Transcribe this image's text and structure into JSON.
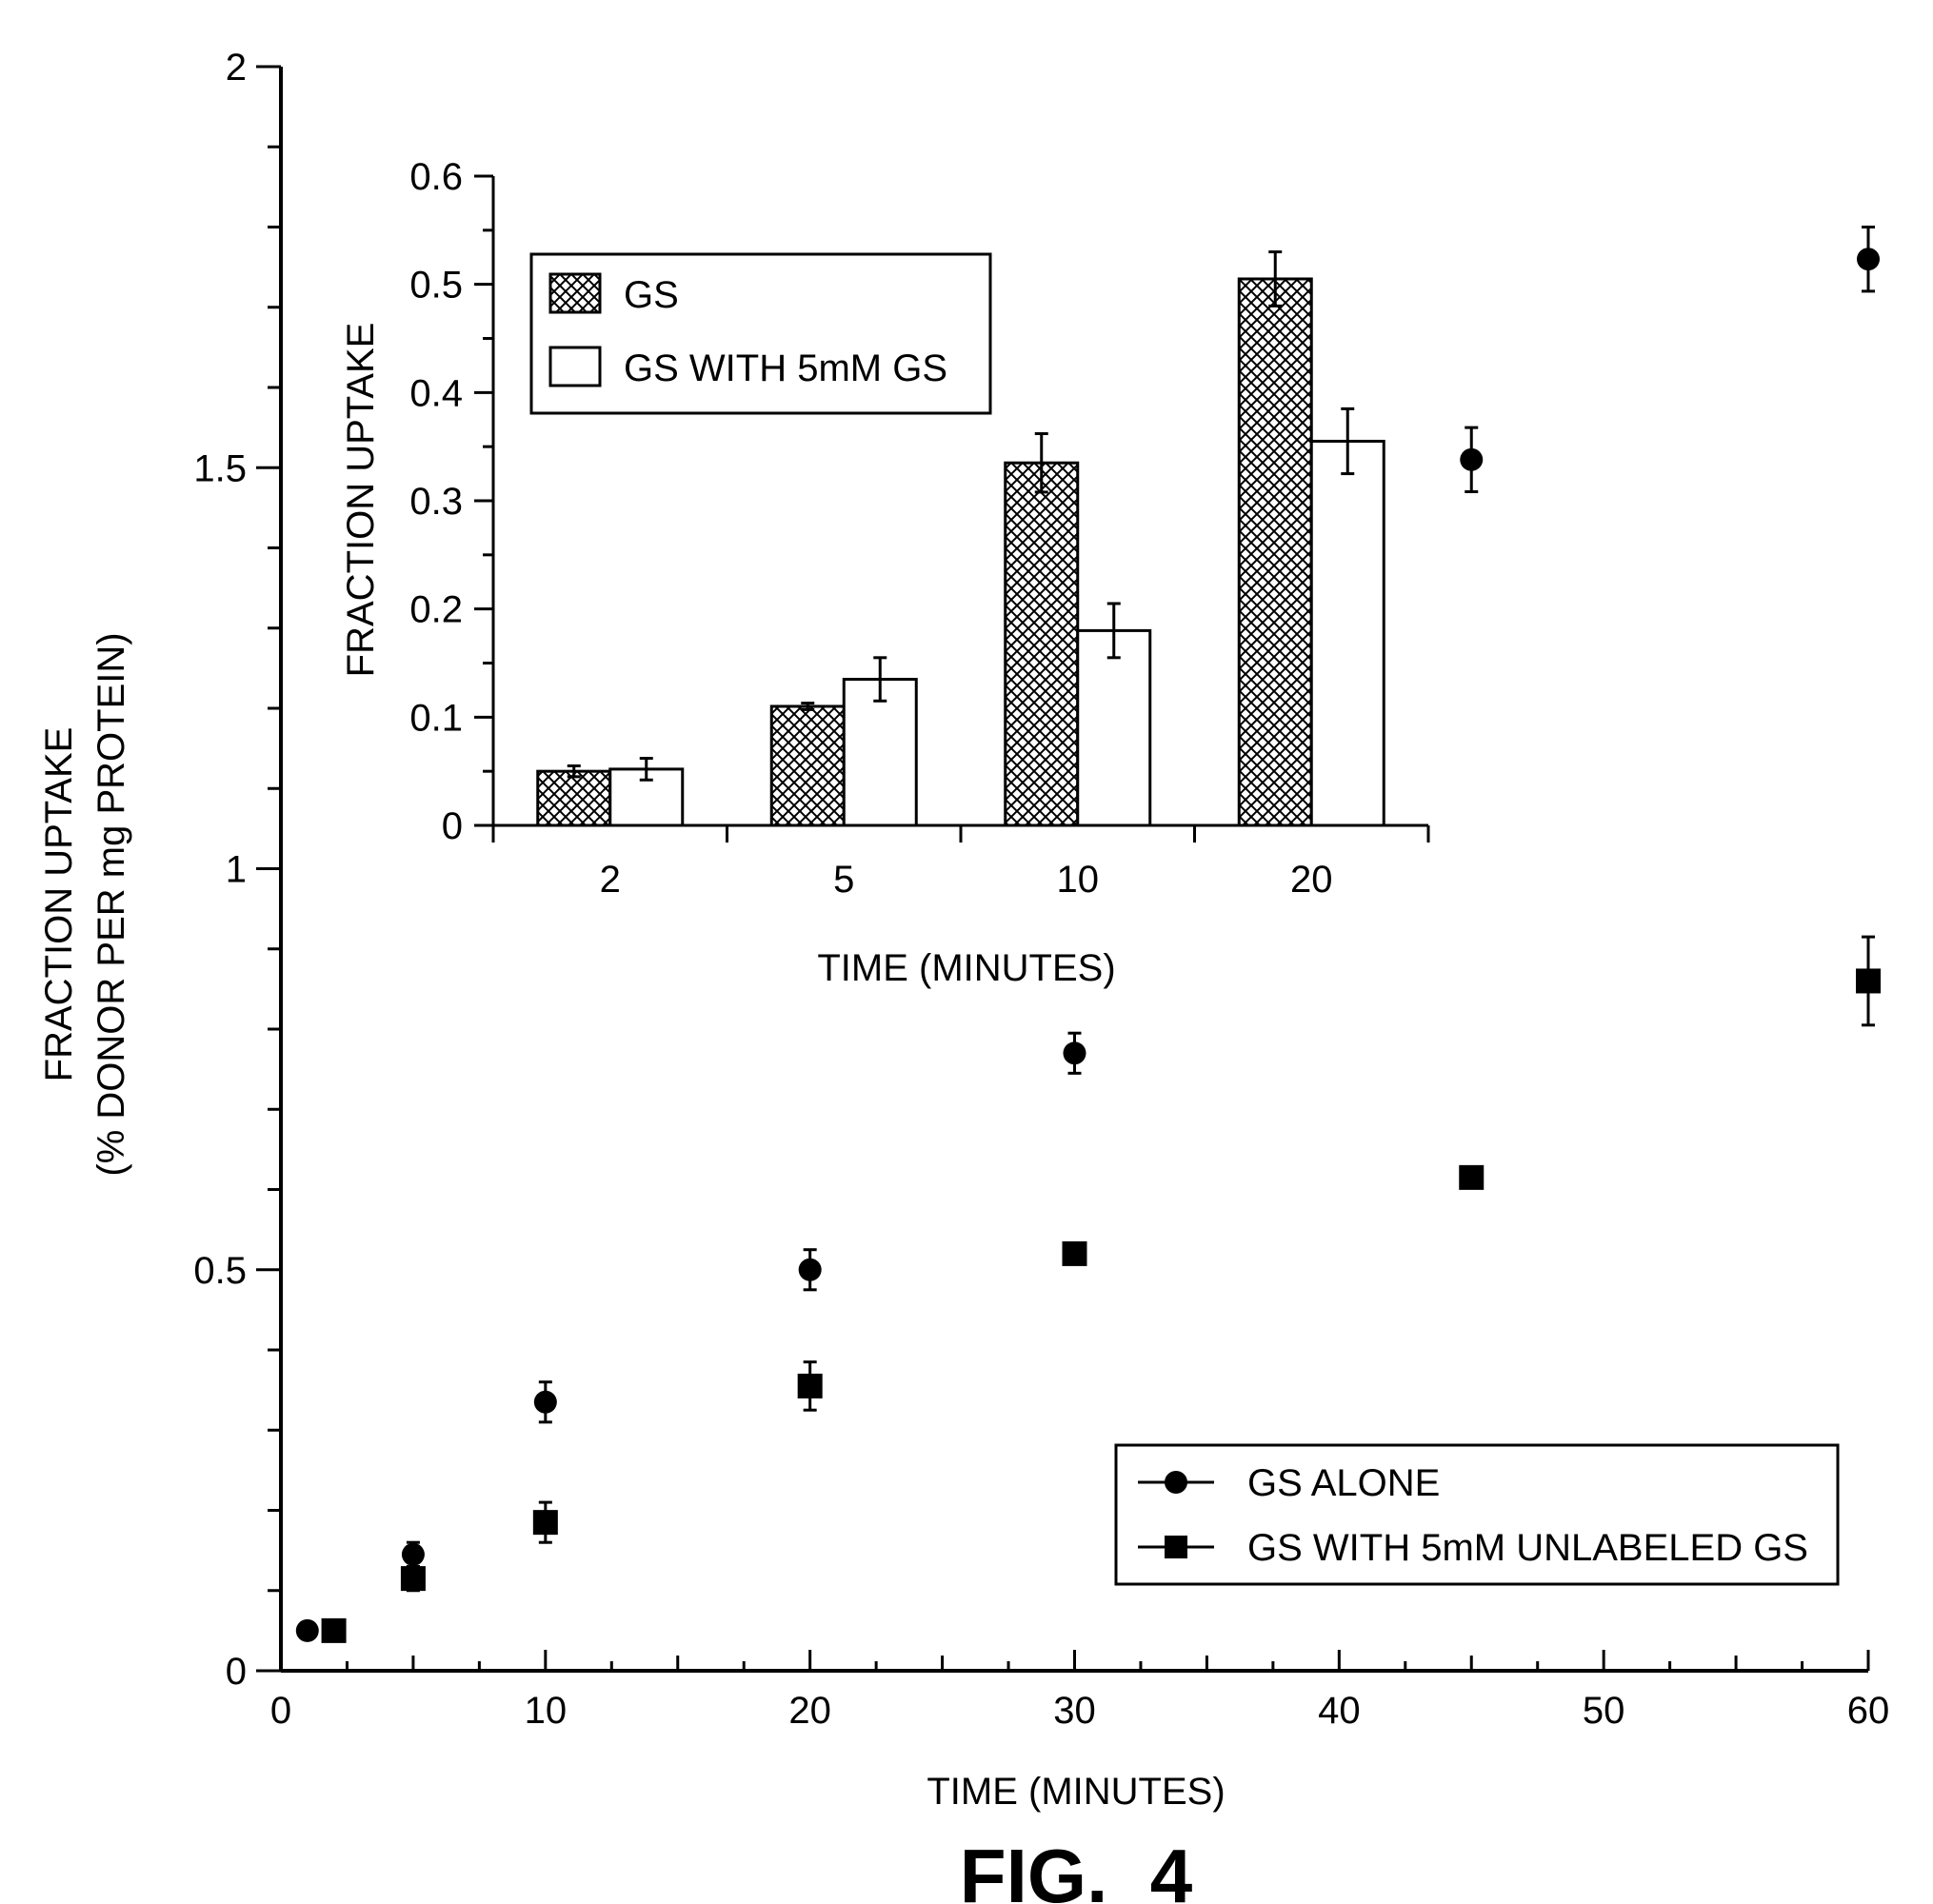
{
  "chart_data": [
    {
      "type": "scatter",
      "xlabel": "TIME (MINUTES)",
      "ylabel_lines": [
        "FRACTION UPTAKE",
        "(% DONOR PER mg PROTEIN)"
      ],
      "xlim": [
        0,
        60
      ],
      "ylim": [
        0,
        2
      ],
      "xticks": [
        0,
        10,
        20,
        30,
        40,
        50,
        60
      ],
      "xtick_labels": [
        "0",
        "10",
        "20",
        "30",
        "40",
        "50",
        "60"
      ],
      "yticks": [
        0,
        0.5,
        1,
        1.5,
        2
      ],
      "ytick_labels": [
        "0",
        "0.5",
        "1",
        "1.5",
        "2"
      ],
      "grid": false,
      "legend_position": "bottom-right",
      "series": [
        {
          "name": "GS ALONE",
          "marker": "circle",
          "x": [
            1,
            5,
            10,
            20,
            30,
            45,
            60
          ],
          "y": [
            0.05,
            0.145,
            0.335,
            0.5,
            0.77,
            1.51,
            1.76
          ],
          "err": [
            0,
            0.015,
            0.025,
            0.025,
            0.025,
            0.04,
            0.04
          ]
        },
        {
          "name": "GS WITH 5mM UNLABELED GS",
          "marker": "square",
          "x": [
            2,
            5,
            10,
            20,
            30,
            45,
            60
          ],
          "y": [
            0.05,
            0.115,
            0.185,
            0.355,
            0.52,
            0.615,
            0.86
          ],
          "err": [
            0,
            0.015,
            0.025,
            0.03,
            0,
            0,
            0.055
          ]
        }
      ]
    },
    {
      "type": "bar",
      "xlabel": "TIME (MINUTES)",
      "ylabel": "FRACTION UPTAKE",
      "categories": [
        "2",
        "5",
        "10",
        "20"
      ],
      "ylim": [
        0,
        0.6
      ],
      "yticks": [
        0,
        0.1,
        0.2,
        0.3,
        0.4,
        0.5,
        0.6
      ],
      "ytick_labels": [
        "0",
        "0.1",
        "0.2",
        "0.3",
        "0.4",
        "0.5",
        "0.6"
      ],
      "grid": false,
      "legend_position": "top-left",
      "series": [
        {
          "name": "GS",
          "fill": "crosshatch",
          "values": [
            0.05,
            0.11,
            0.335,
            0.505
          ],
          "err": [
            0.005,
            0.003,
            0.027,
            0.025
          ]
        },
        {
          "name": "GS WITH 5mM GS",
          "fill": "white",
          "values": [
            0.052,
            0.135,
            0.18,
            0.355
          ],
          "err": [
            0.01,
            0.02,
            0.025,
            0.03
          ]
        }
      ]
    }
  ],
  "figure_label": "FIG.  4"
}
